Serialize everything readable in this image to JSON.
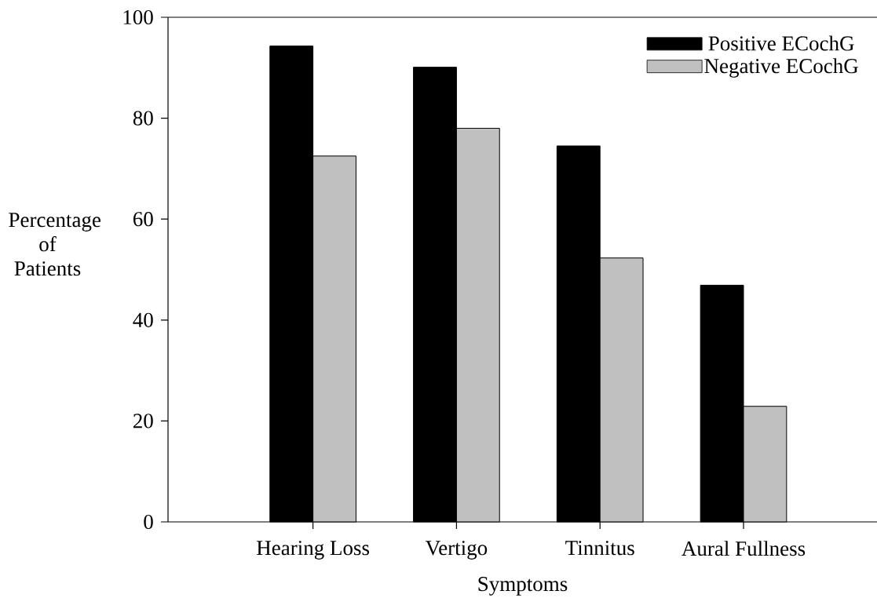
{
  "chart_data": {
    "type": "bar",
    "categories": [
      "Hearing Loss",
      "Vertigo",
      "Tinnitus",
      "Aural Fullness"
    ],
    "series": [
      {
        "name": "Positive ECochG",
        "color": "#000000",
        "values": [
          94.3,
          90.1,
          74.5,
          46.9
        ]
      },
      {
        "name": "Negative ECochG",
        "color": "#c0c0c0",
        "values": [
          72.5,
          78.0,
          52.3,
          22.9
        ]
      }
    ],
    "xlabel": "Symptoms",
    "ylabel": "Percentage of Patients",
    "ylim": [
      0,
      100
    ],
    "yticks": [
      0,
      20,
      40,
      60,
      80,
      100
    ],
    "legend": "top right",
    "grid": false
  }
}
